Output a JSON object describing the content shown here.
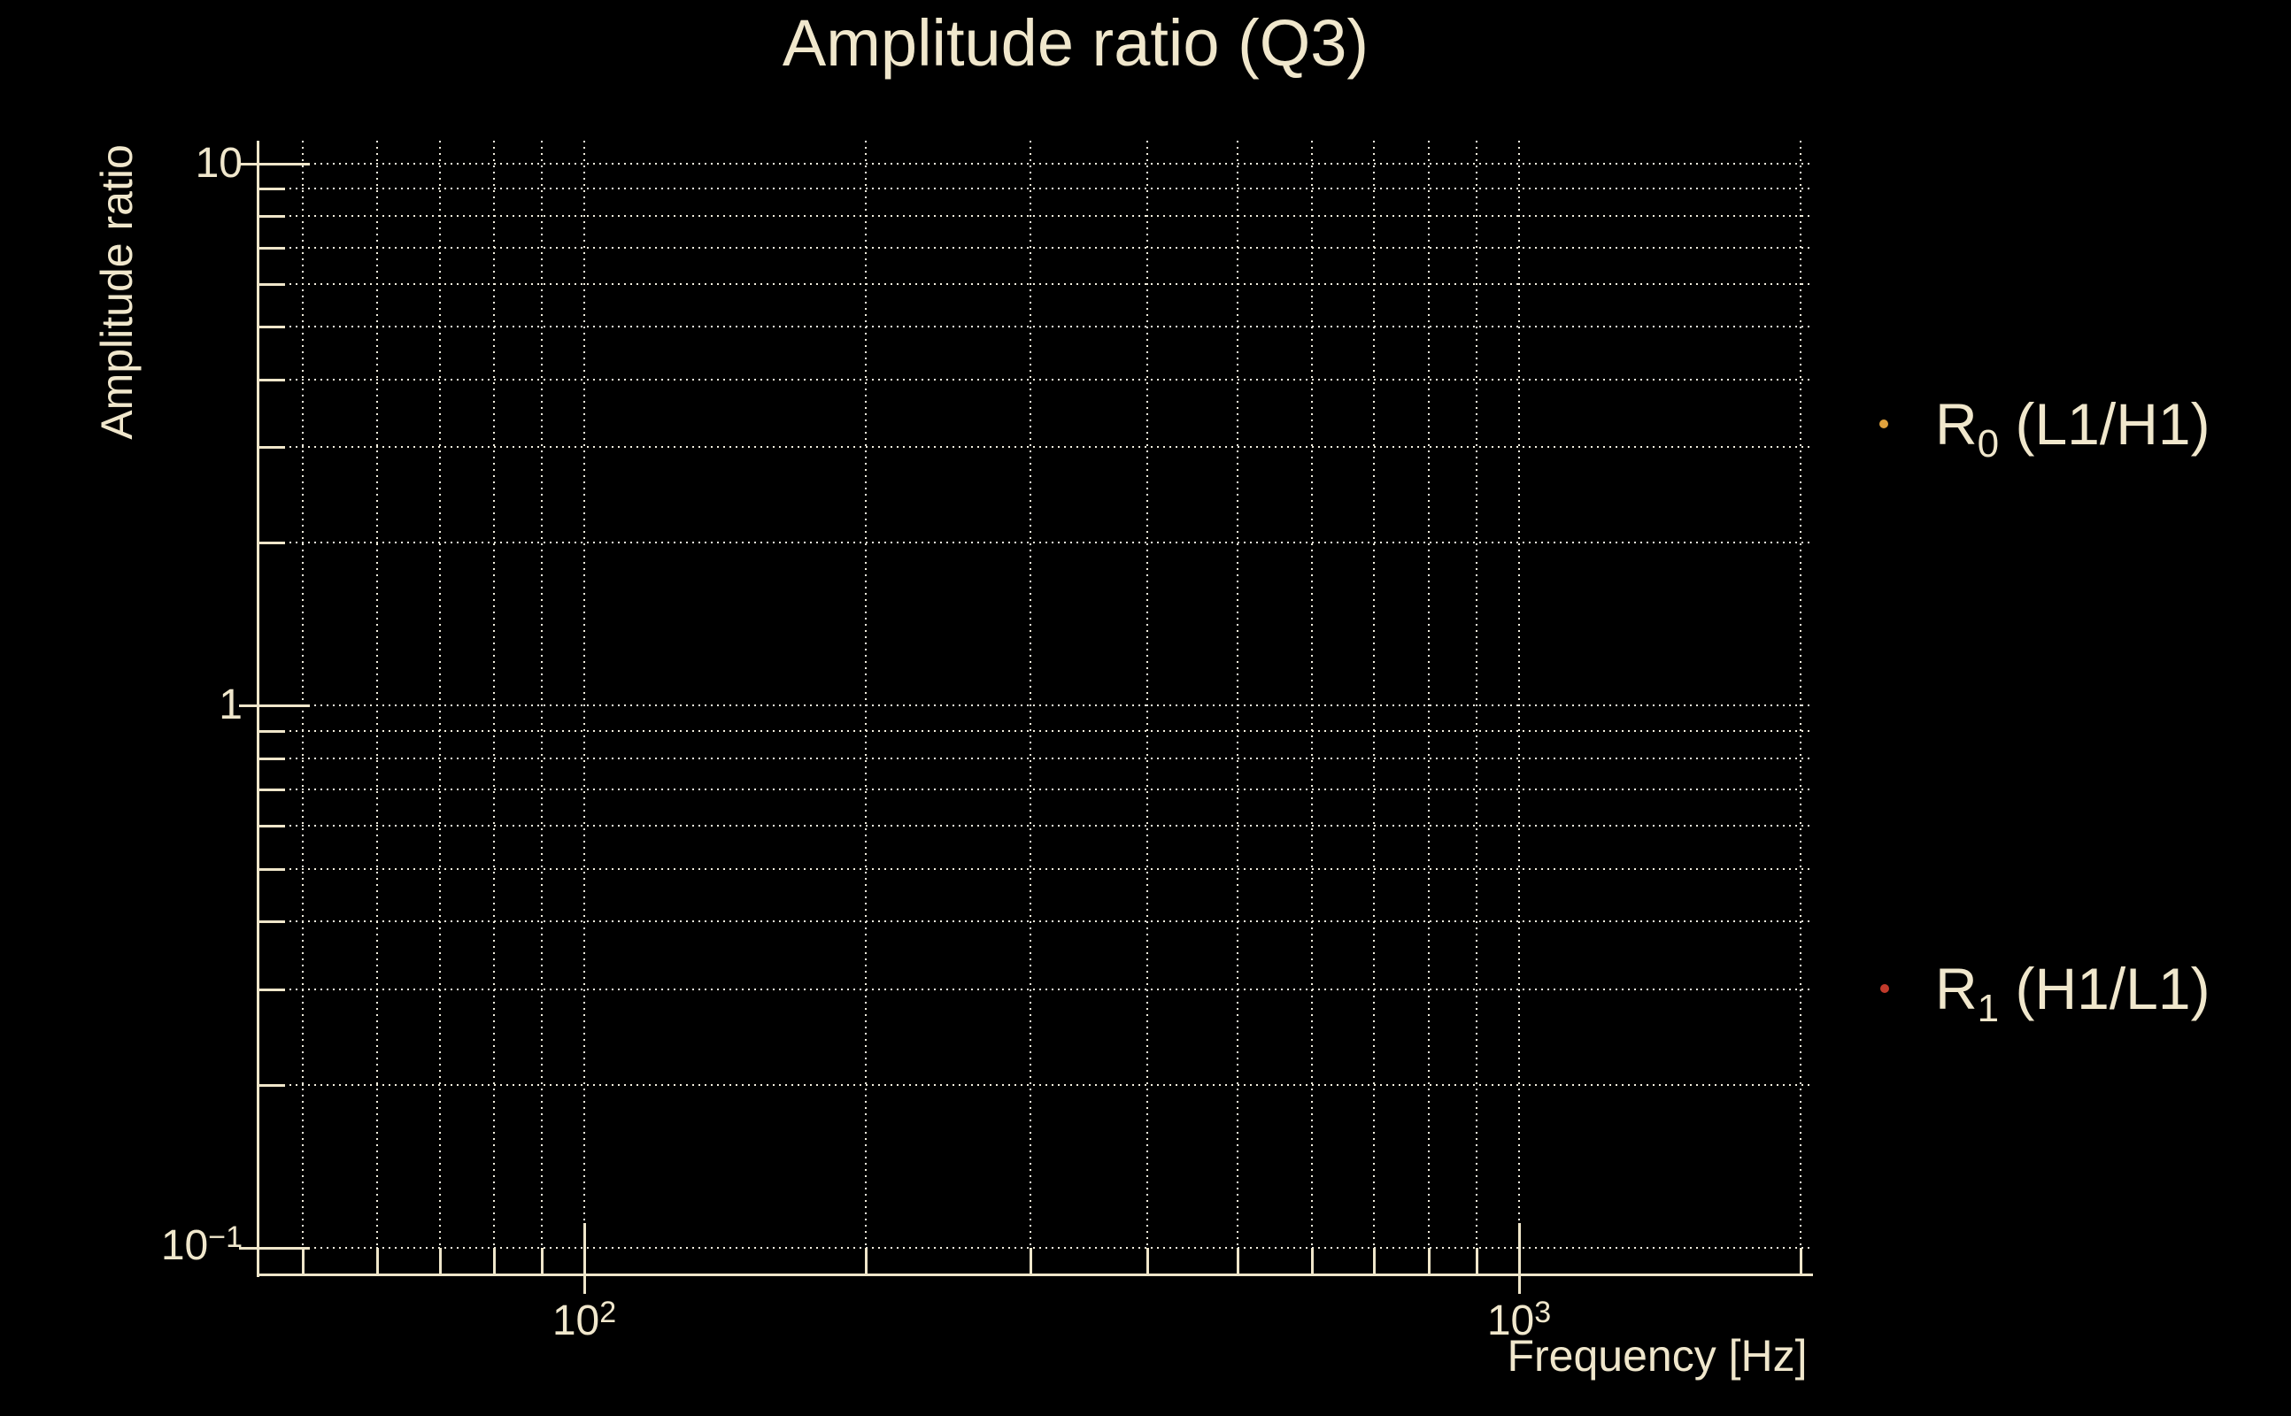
{
  "chart_data": {
    "type": "scatter",
    "title": "Amplitude ratio (Q3)",
    "xlabel": "Frequency [Hz]",
    "ylabel": "Amplitude ratio",
    "xscale": "log",
    "yscale": "log",
    "xlim": [
      44.8,
      2050
    ],
    "ylim": [
      0.0893,
      11.03
    ],
    "grid": {
      "major": true,
      "minor": true,
      "linestyle": "dotted"
    },
    "x_major_ticks": [
      100,
      1000
    ],
    "x_minor_gridlines": [
      50,
      60,
      70,
      80,
      90,
      200,
      300,
      400,
      500,
      600,
      700,
      800,
      900,
      2000
    ],
    "y_major_ticks": [
      10,
      1,
      0.1
    ],
    "y_minor_gridlines": [
      9,
      8,
      7,
      6,
      5,
      4,
      3,
      2,
      0.9,
      0.8,
      0.7,
      0.6,
      0.5,
      0.4,
      0.3,
      0.2
    ],
    "x_tick_labels": [
      {
        "base": "10",
        "exp": "2",
        "value": 100
      },
      {
        "base": "10",
        "exp": "3",
        "value": 1000
      }
    ],
    "y_tick_labels": [
      {
        "base": "10",
        "exp": "",
        "value": 10
      },
      {
        "base": "1",
        "exp": "",
        "value": 1
      },
      {
        "base": "10",
        "exp": "−1",
        "value": 0.1
      }
    ],
    "legend_position": "outside-right",
    "series": [
      {
        "name": "R0 (L1/H1)",
        "label": {
          "main": "R",
          "sub": "0",
          "rest": " (L1/H1)"
        },
        "marker": "point",
        "color": "#e0a23d",
        "x": [],
        "y": []
      },
      {
        "name": "R1 (H1/L1)",
        "label": {
          "main": "R",
          "sub": "1",
          "rest": " (H1/L1)"
        },
        "marker": "point",
        "color": "#c13a2b",
        "x": [],
        "y": []
      }
    ],
    "colors": {
      "background": "#000000",
      "text": "#f0e7cc",
      "axes": "#efe6ca",
      "grid": "#f3eede"
    }
  }
}
